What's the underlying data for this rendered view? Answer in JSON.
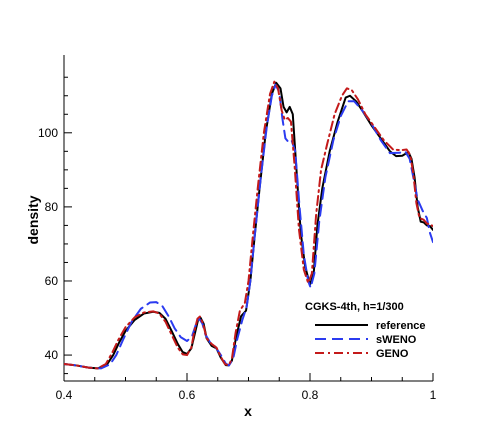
{
  "chart_data": {
    "type": "line",
    "xlabel": "x",
    "ylabel": "density",
    "xlim": [
      0.4,
      1.0
    ],
    "ylim": [
      33,
      121
    ],
    "x_ticks": [
      "0.4",
      "0.6",
      "0.8",
      "1"
    ],
    "y_ticks": [
      "40",
      "60",
      "80",
      "100"
    ],
    "grid": false,
    "legend": {
      "title": "CGKS-4th, h=1/300",
      "placement": "bottom-right"
    },
    "series": [
      {
        "name": "reference",
        "color": "#000000",
        "dash": "solid",
        "points": [
          [
            0.4,
            37.6
          ],
          [
            0.42,
            37.2
          ],
          [
            0.44,
            36.6
          ],
          [
            0.455,
            36.4
          ],
          [
            0.47,
            37.5
          ],
          [
            0.48,
            40
          ],
          [
            0.49,
            43.5
          ],
          [
            0.5,
            46.5
          ],
          [
            0.515,
            49.5
          ],
          [
            0.53,
            51.2
          ],
          [
            0.545,
            51.7
          ],
          [
            0.555,
            51.4
          ],
          [
            0.565,
            49.8
          ],
          [
            0.575,
            46.5
          ],
          [
            0.585,
            43
          ],
          [
            0.593,
            40.8
          ],
          [
            0.6,
            40.3
          ],
          [
            0.607,
            41.8
          ],
          [
            0.613,
            46
          ],
          [
            0.618,
            49.5
          ],
          [
            0.622,
            50.1
          ],
          [
            0.627,
            48.5
          ],
          [
            0.632,
            44.5
          ],
          [
            0.64,
            42.5
          ],
          [
            0.648,
            41.8
          ],
          [
            0.655,
            39.3
          ],
          [
            0.663,
            37.3
          ],
          [
            0.668,
            37.2
          ],
          [
            0.673,
            38.5
          ],
          [
            0.68,
            45
          ],
          [
            0.688,
            50.5
          ],
          [
            0.696,
            52
          ],
          [
            0.703,
            60
          ],
          [
            0.71,
            72
          ],
          [
            0.718,
            85
          ],
          [
            0.728,
            100
          ],
          [
            0.738,
            110.5
          ],
          [
            0.745,
            113.5
          ],
          [
            0.752,
            112
          ],
          [
            0.757,
            107
          ],
          [
            0.762,
            105.5
          ],
          [
            0.767,
            107
          ],
          [
            0.772,
            105
          ],
          [
            0.778,
            90
          ],
          [
            0.785,
            73
          ],
          [
            0.792,
            64
          ],
          [
            0.8,
            59
          ],
          [
            0.806,
            62
          ],
          [
            0.812,
            75
          ],
          [
            0.82,
            85
          ],
          [
            0.832,
            95
          ],
          [
            0.845,
            103
          ],
          [
            0.858,
            109.5
          ],
          [
            0.865,
            110
          ],
          [
            0.875,
            108.5
          ],
          [
            0.885,
            106
          ],
          [
            0.9,
            102
          ],
          [
            0.915,
            98.5
          ],
          [
            0.93,
            95
          ],
          [
            0.94,
            93.7
          ],
          [
            0.95,
            93.8
          ],
          [
            0.96,
            94.8
          ],
          [
            0.965,
            93
          ],
          [
            0.97,
            88
          ],
          [
            0.975,
            80
          ],
          [
            0.98,
            76
          ],
          [
            0.985,
            75.8
          ],
          [
            0.99,
            75
          ],
          [
            0.995,
            74.8
          ],
          [
            1.0,
            73.8
          ]
        ]
      },
      {
        "name": "sWENO",
        "color": "#2b3bf0",
        "dash": "11,6",
        "points": [
          [
            0.4,
            37.6
          ],
          [
            0.42,
            37.2
          ],
          [
            0.44,
            36.6
          ],
          [
            0.46,
            36.4
          ],
          [
            0.475,
            37.5
          ],
          [
            0.485,
            40
          ],
          [
            0.497,
            44.5
          ],
          [
            0.51,
            49
          ],
          [
            0.525,
            52.5
          ],
          [
            0.54,
            54.2
          ],
          [
            0.55,
            54.3
          ],
          [
            0.56,
            53.2
          ],
          [
            0.57,
            50.5
          ],
          [
            0.58,
            47.2
          ],
          [
            0.59,
            44.8
          ],
          [
            0.6,
            43.8
          ],
          [
            0.608,
            45
          ],
          [
            0.615,
            48.5
          ],
          [
            0.62,
            49.8
          ],
          [
            0.625,
            48.5
          ],
          [
            0.63,
            45.5
          ],
          [
            0.638,
            43.3
          ],
          [
            0.645,
            42.5
          ],
          [
            0.655,
            40
          ],
          [
            0.663,
            37.7
          ],
          [
            0.668,
            37.2
          ],
          [
            0.675,
            39
          ],
          [
            0.682,
            44.5
          ],
          [
            0.69,
            49.5
          ],
          [
            0.697,
            53
          ],
          [
            0.703,
            60
          ],
          [
            0.71,
            72
          ],
          [
            0.72,
            88
          ],
          [
            0.73,
            102
          ],
          [
            0.738,
            110
          ],
          [
            0.744,
            113
          ],
          [
            0.75,
            111
          ],
          [
            0.755,
            104
          ],
          [
            0.76,
            98.5
          ],
          [
            0.765,
            97.5
          ],
          [
            0.77,
            98
          ],
          [
            0.776,
            95
          ],
          [
            0.783,
            80
          ],
          [
            0.79,
            67
          ],
          [
            0.797,
            60
          ],
          [
            0.801,
            58.2
          ],
          [
            0.807,
            62
          ],
          [
            0.815,
            76
          ],
          [
            0.825,
            88
          ],
          [
            0.838,
            98
          ],
          [
            0.85,
            104.5
          ],
          [
            0.862,
            108.5
          ],
          [
            0.872,
            108.5
          ],
          [
            0.885,
            106
          ],
          [
            0.9,
            102.5
          ],
          [
            0.915,
            98
          ],
          [
            0.93,
            94.5
          ],
          [
            0.945,
            94.6
          ],
          [
            0.955,
            94.9
          ],
          [
            0.962,
            93
          ],
          [
            0.968,
            88
          ],
          [
            0.975,
            82
          ],
          [
            0.983,
            79
          ],
          [
            0.99,
            77
          ],
          [
            0.995,
            73
          ],
          [
            1.0,
            70.5
          ]
        ]
      },
      {
        "name": "GENO",
        "color": "#c41a1a",
        "dash": "9,4,2,4",
        "points": [
          [
            0.4,
            37.6
          ],
          [
            0.42,
            37.2
          ],
          [
            0.44,
            36.6
          ],
          [
            0.455,
            36.4
          ],
          [
            0.468,
            37.6
          ],
          [
            0.478,
            40.5
          ],
          [
            0.488,
            44
          ],
          [
            0.5,
            47.5
          ],
          [
            0.515,
            50.2
          ],
          [
            0.53,
            51.5
          ],
          [
            0.545,
            51.8
          ],
          [
            0.555,
            51.2
          ],
          [
            0.565,
            49
          ],
          [
            0.575,
            45.5
          ],
          [
            0.585,
            42
          ],
          [
            0.593,
            40.2
          ],
          [
            0.6,
            40
          ],
          [
            0.607,
            42
          ],
          [
            0.612,
            46.5
          ],
          [
            0.617,
            49.8
          ],
          [
            0.621,
            50.4
          ],
          [
            0.626,
            48.5
          ],
          [
            0.632,
            44.5
          ],
          [
            0.64,
            43
          ],
          [
            0.648,
            42
          ],
          [
            0.655,
            39.5
          ],
          [
            0.662,
            37.5
          ],
          [
            0.668,
            37.3
          ],
          [
            0.673,
            39
          ],
          [
            0.679,
            46
          ],
          [
            0.686,
            52
          ],
          [
            0.694,
            54
          ],
          [
            0.7,
            60
          ],
          [
            0.707,
            72
          ],
          [
            0.715,
            85
          ],
          [
            0.725,
            100
          ],
          [
            0.735,
            110.5
          ],
          [
            0.742,
            113.8
          ],
          [
            0.748,
            112
          ],
          [
            0.754,
            106
          ],
          [
            0.759,
            103.5
          ],
          [
            0.764,
            104
          ],
          [
            0.769,
            103
          ],
          [
            0.775,
            91
          ],
          [
            0.782,
            74
          ],
          [
            0.79,
            63
          ],
          [
            0.797,
            59.5
          ],
          [
            0.803,
            62
          ],
          [
            0.81,
            78
          ],
          [
            0.818,
            90
          ],
          [
            0.828,
            97
          ],
          [
            0.84,
            105
          ],
          [
            0.852,
            110
          ],
          [
            0.86,
            112
          ],
          [
            0.868,
            111.5
          ],
          [
            0.878,
            109
          ],
          [
            0.89,
            105
          ],
          [
            0.905,
            101.5
          ],
          [
            0.92,
            98
          ],
          [
            0.935,
            95.5
          ],
          [
            0.948,
            95.3
          ],
          [
            0.957,
            95.5
          ],
          [
            0.963,
            94
          ],
          [
            0.968,
            89
          ],
          [
            0.973,
            81
          ],
          [
            0.978,
            77
          ],
          [
            0.985,
            76.5
          ],
          [
            0.99,
            75.5
          ],
          [
            0.995,
            75.3
          ],
          [
            1.0,
            74.8
          ]
        ]
      }
    ]
  }
}
